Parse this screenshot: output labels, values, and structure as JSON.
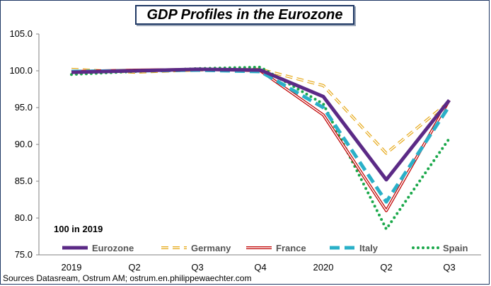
{
  "title": "GDP Profiles in the Eurozone",
  "source": "Sources Datasream, Ostrum AM; ostrum.en.philippewaechter.com",
  "chart_data": {
    "type": "line",
    "title": "GDP Profiles in the Eurozone",
    "annotation": "100 in 2019",
    "categories": [
      "2019",
      "Q2",
      "Q3",
      "Q4",
      "2020",
      "Q2",
      "Q3"
    ],
    "ylim": [
      75,
      105
    ],
    "yticks": [
      "105.0",
      "100.0",
      "95.0",
      "90.0",
      "85.0",
      "80.0",
      "75.0"
    ],
    "grid": false,
    "legend_position": "bottom",
    "series": [
      {
        "name": "Eurozone",
        "color": "#5b2a86",
        "style": "solid-thick",
        "values": [
          99.8,
          100.0,
          100.2,
          100.1,
          96.5,
          85.2,
          96.0
        ]
      },
      {
        "name": "Germany",
        "color": "#e6a817",
        "style": "dashed-outline",
        "values": [
          100.2,
          99.8,
          100.1,
          100.2,
          98.0,
          88.8,
          95.8
        ]
      },
      {
        "name": "France",
        "color": "#c00000",
        "style": "double-line",
        "values": [
          99.9,
          100.1,
          100.2,
          100.0,
          94.0,
          81.0,
          96.0
        ]
      },
      {
        "name": "Italy",
        "color": "#2ab0c8",
        "style": "dashed-thick",
        "values": [
          99.9,
          100.0,
          100.1,
          99.9,
          95.0,
          82.2,
          95.2
        ]
      },
      {
        "name": "Spain",
        "color": "#1aa84a",
        "style": "dotted",
        "values": [
          99.5,
          99.9,
          100.3,
          100.5,
          95.5,
          78.5,
          90.8
        ]
      }
    ]
  }
}
